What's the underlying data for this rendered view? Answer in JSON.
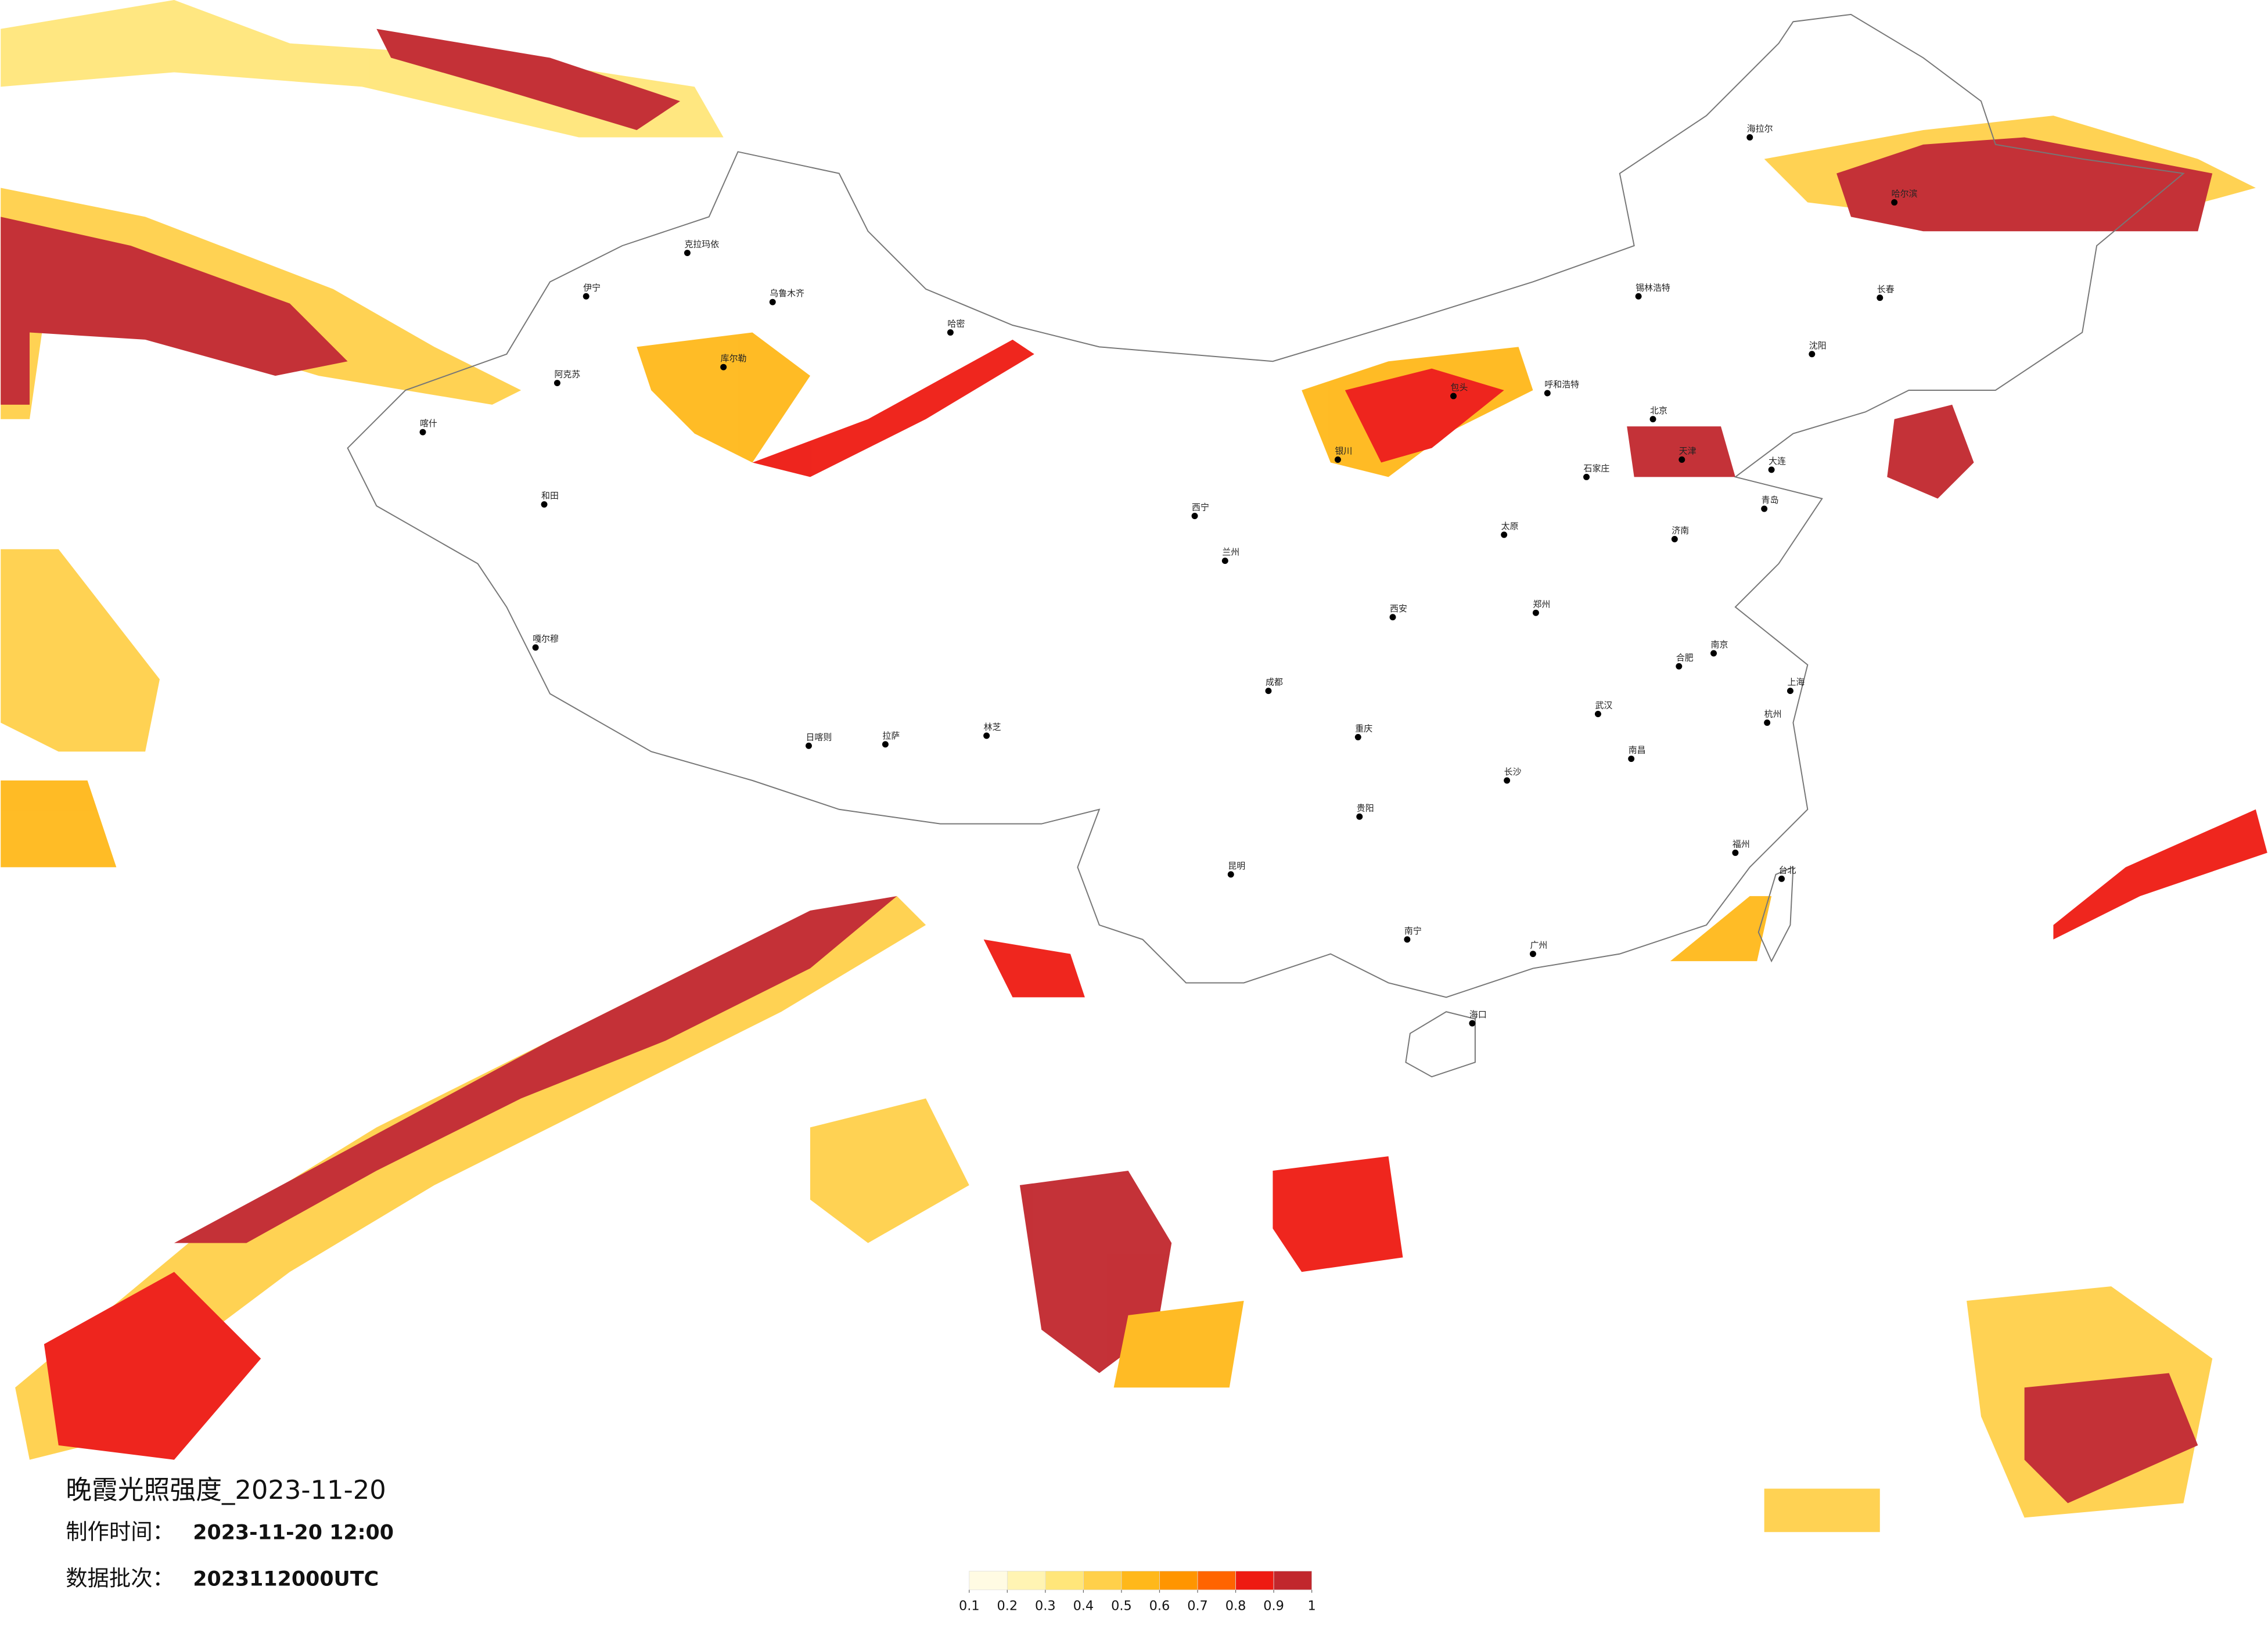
{
  "title": "晚霞光照强度_2023-11-20",
  "info": [
    {
      "label": "制作时间：",
      "value": "2023-11-20 12:00"
    },
    {
      "label": "数据批次：",
      "value": "2023112000UTC"
    }
  ],
  "legend": {
    "ticks": [
      0.1,
      0.2,
      0.3,
      0.4,
      0.5,
      0.6,
      0.7,
      0.8,
      0.9,
      1
    ],
    "colors": [
      "#fffbe3",
      "#fff4b3",
      "#ffe67a",
      "#ffd04a",
      "#ffb81a",
      "#ff9500",
      "#ff6400",
      "#ee1a12",
      "#c1272d"
    ]
  },
  "cities": [
    "克拉玛依",
    "乌鲁木齐",
    "伊宁",
    "喀什",
    "和田",
    "阿克苏",
    "库尔勒",
    "哈密",
    "嘎尔穆",
    "日喀则",
    "拉萨",
    "林芝",
    "西宁",
    "兰州",
    "银川",
    "包头",
    "呼和浩特",
    "北京",
    "天津",
    "石家庄",
    "太原",
    "济南",
    "郑州",
    "西安",
    "武汉",
    "合肥",
    "南京",
    "上海",
    "杭州",
    "南昌",
    "长沙",
    "福州",
    "台北",
    "广州",
    "南宁",
    "海口",
    "贵阳",
    "昆明",
    "成都",
    "重庆",
    "沈阳",
    "长春",
    "哈尔滨",
    "海拉尔",
    "锡林浩特",
    "大连",
    "青岛"
  ]
}
